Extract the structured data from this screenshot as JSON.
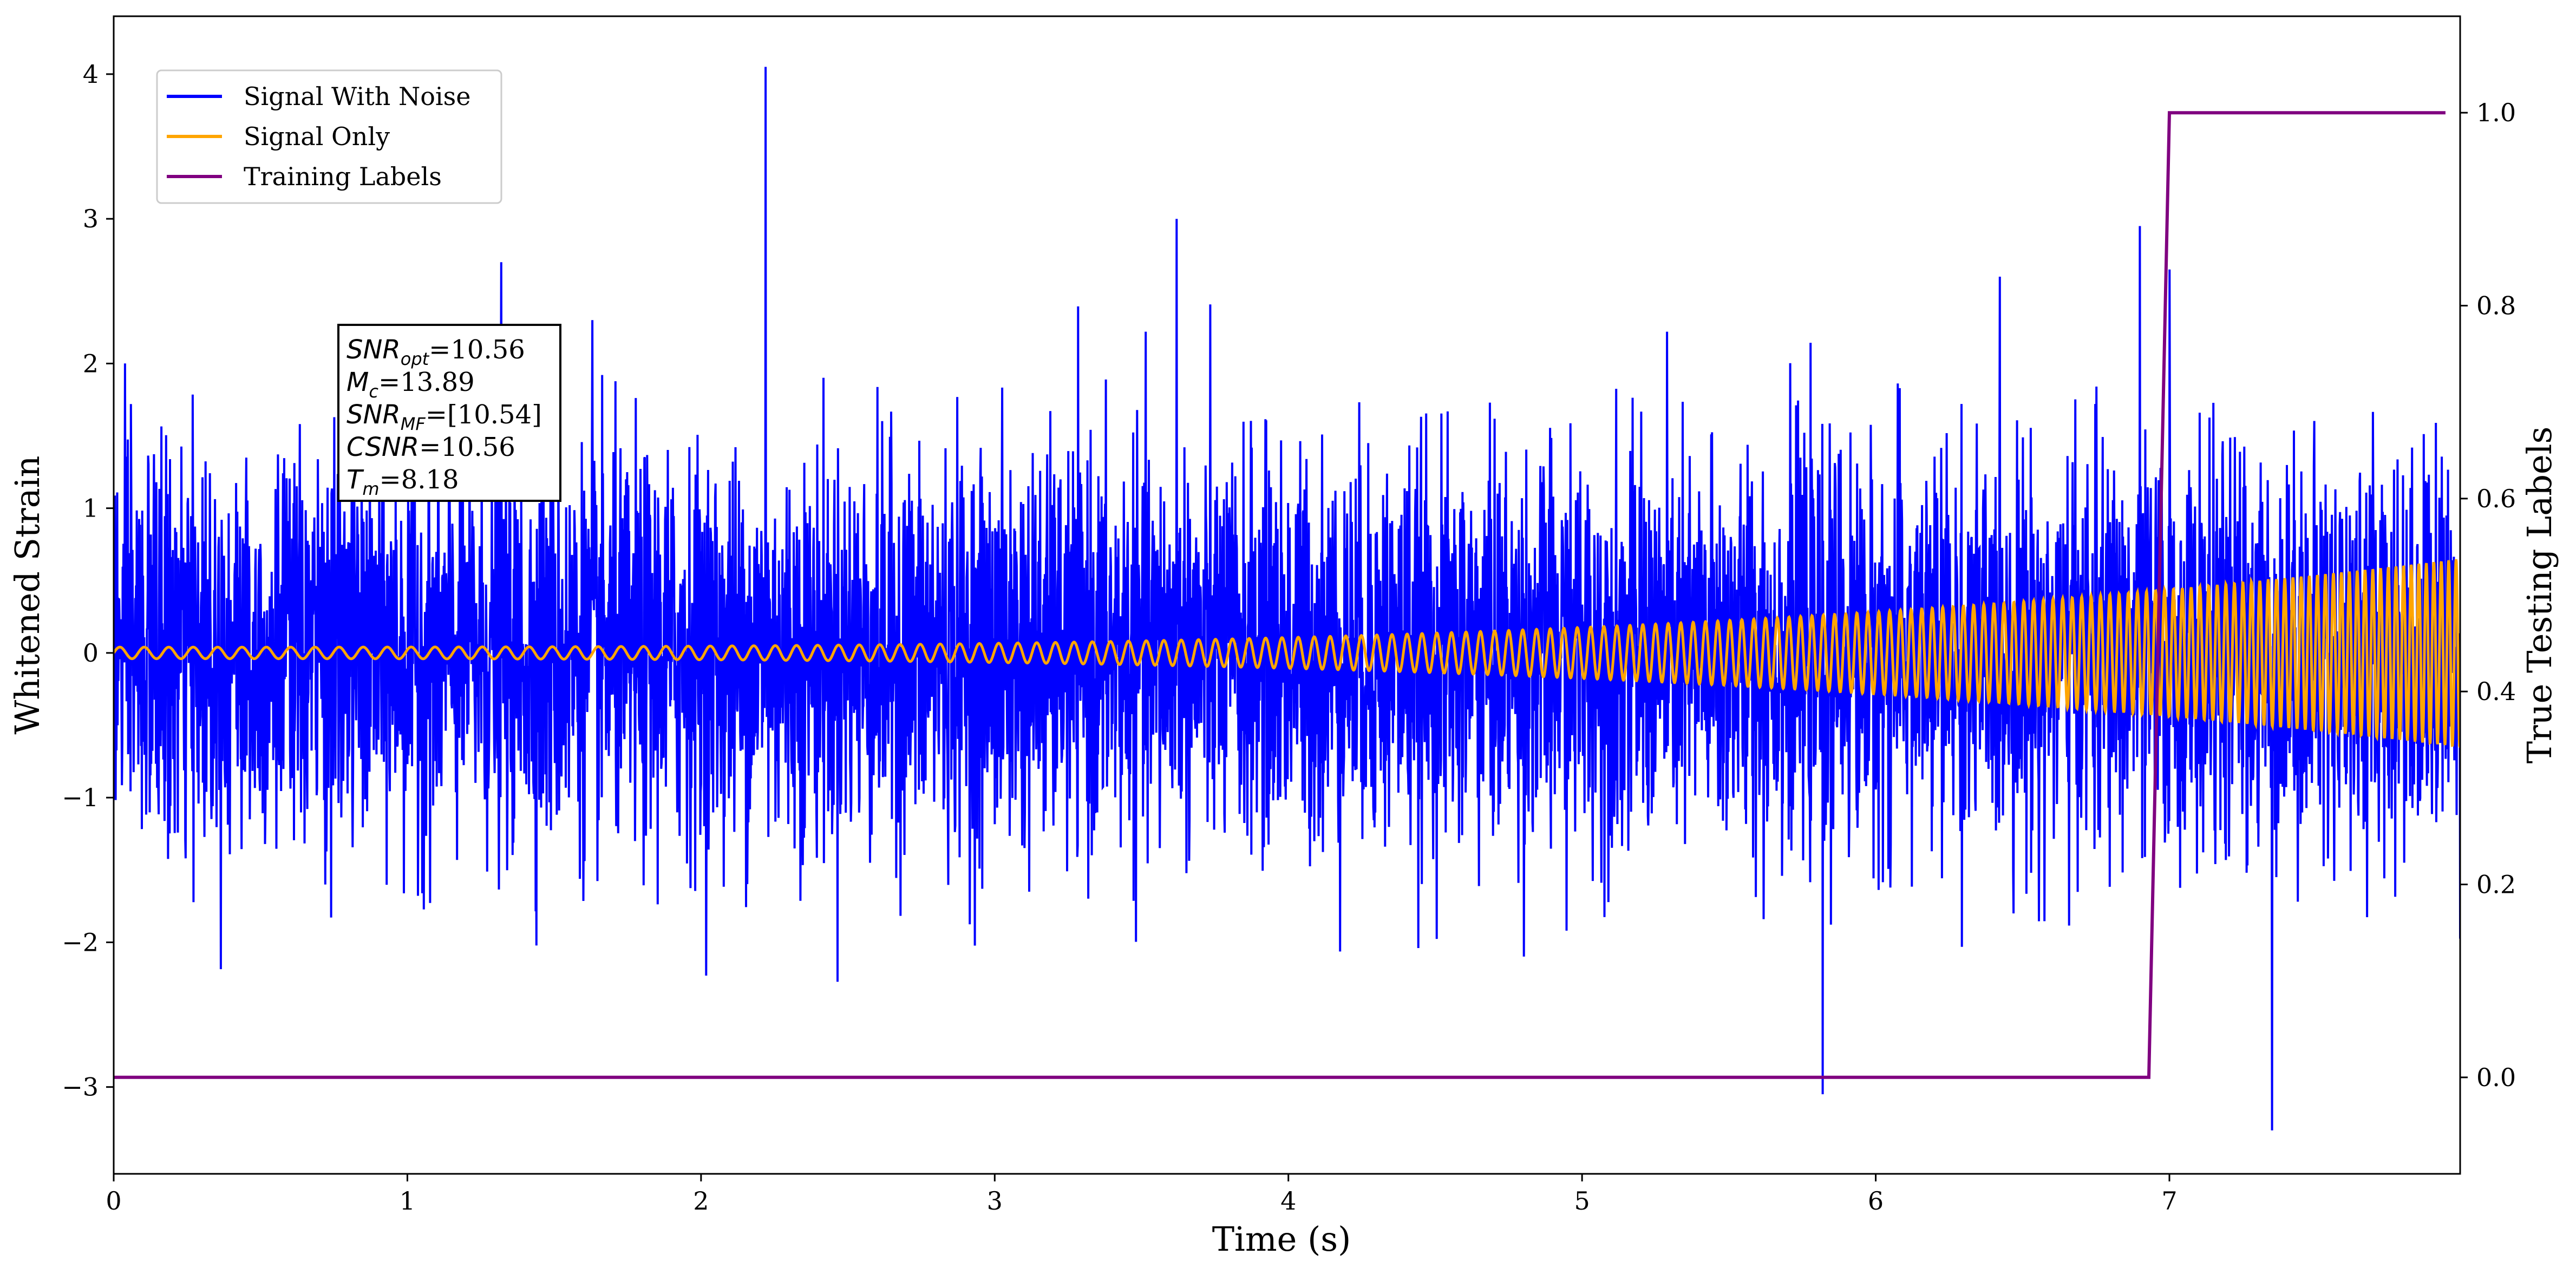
{
  "chart_data": {
    "type": "line",
    "xlabel": "Time (s)",
    "ylabel": "Whitened Strain",
    "y2label": "True Testing Labels",
    "xlim": [
      0,
      7.99
    ],
    "ylim": [
      -3.6,
      4.4
    ],
    "y2lim": [
      -0.1,
      1.1
    ],
    "x_ticks": [
      0,
      1,
      2,
      3,
      4,
      5,
      6,
      7
    ],
    "y_ticks": [
      -3,
      -2,
      -1,
      0,
      1,
      2,
      3,
      4
    ],
    "y2_ticks": [
      0.0,
      0.2,
      0.4,
      0.6,
      0.8,
      1.0
    ],
    "y_tick_labels": [
      "−3",
      "−2",
      "−1",
      "0",
      "1",
      "2",
      "3",
      "4"
    ],
    "y2_tick_labels": [
      "0.0",
      "0.2",
      "0.4",
      "0.6",
      "0.8",
      "1.0"
    ],
    "grid": false,
    "legend_position": "top-left",
    "series": [
      {
        "name": "Signal With Noise",
        "color": "#0000ff",
        "axis": "left",
        "description_values": {
          "approx_range": [
            -3.3,
            4.05
          ],
          "typical_amplitude": 1.6,
          "peaks": [
            [
              0.059,
              1.72
            ],
            [
              1.32,
              2.7
            ],
            [
              1.63,
              2.3
            ],
            [
              2.22,
              4.05
            ],
            [
              3.62,
              3.0
            ],
            [
              5.82,
              -3.05
            ],
            [
              7.0,
              2.65
            ],
            [
              7.35,
              -3.3
            ],
            [
              6.9,
              2.95
            ]
          ]
        }
      },
      {
        "name": "Signal Only",
        "color": "#ffa500",
        "axis": "left",
        "description_values": {
          "start_amplitude": 0.04,
          "end_amplitude": 0.65,
          "start_frequency_hz": 12,
          "end_frequency_hz": 40
        }
      },
      {
        "name": "Training Labels",
        "color": "#800080",
        "axis": "right",
        "x": [
          0,
          6.93,
          7.0,
          7.94
        ],
        "values": [
          0.0,
          0.0,
          1.0,
          1.0
        ]
      }
    ],
    "annotation": {
      "lines": [
        {
          "sym": "SNR",
          "sub": "opt",
          "value": "=10.56"
        },
        {
          "sym": "M",
          "sub": "c",
          "value": "=13.89"
        },
        {
          "sym": "SNR",
          "sub": "MF",
          "value": "=[10.54]"
        },
        {
          "sym": "CSNR",
          "sub": "",
          "value": "=10.56"
        },
        {
          "sym": "T",
          "sub": "m",
          "value": "=8.18"
        }
      ]
    }
  }
}
